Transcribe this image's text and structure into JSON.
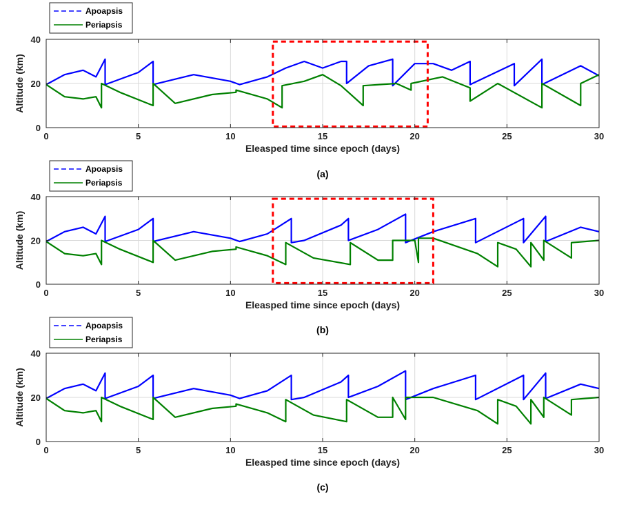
{
  "colors": {
    "apoapsis": "#0000ff",
    "periapsis": "#008000",
    "highlight": "#ff0000",
    "grid": "#d9d9d9",
    "axis": "#262626"
  },
  "chart_data": [
    {
      "type": "line",
      "panel": "(a)",
      "xlabel": "Eleasped time since epoch (days)",
      "ylabel": "Altitude (km)",
      "xlim": [
        0,
        30
      ],
      "ylim": [
        0,
        40
      ],
      "xticks": [
        "0",
        "5",
        "10",
        "15",
        "20",
        "25",
        "30"
      ],
      "yticks": [
        "0",
        "20",
        "40"
      ],
      "grid": true,
      "legend": {
        "position": "top-left-outside",
        "entries": [
          "Apoapsis",
          "Periapsis"
        ]
      },
      "highlight_box": {
        "x": [
          12.3,
          20.7
        ],
        "y": [
          0.5,
          39
        ]
      },
      "series": [
        {
          "name": "Apoapsis",
          "style": "dashed",
          "x": [
            0,
            1,
            2,
            2.7,
            3.2,
            3.2,
            5,
            5.8,
            5.8,
            8,
            10,
            10.5,
            12,
            13,
            14,
            15,
            16,
            16.3,
            16.3,
            17.5,
            18.8,
            18.8,
            20,
            21,
            22,
            23,
            23,
            25.4,
            25.4,
            26.9,
            26.9,
            29,
            30
          ],
          "y": [
            19.5,
            24,
            26,
            23,
            31,
            19.5,
            25,
            30,
            19.5,
            24,
            21,
            19.5,
            23,
            27,
            30,
            27,
            30,
            30,
            20,
            28,
            31,
            19,
            29,
            29,
            26,
            30,
            19.5,
            29,
            19,
            31,
            19.5,
            28,
            23.5
          ]
        },
        {
          "name": "Periapsis",
          "style": "solid",
          "x": [
            0,
            1,
            2,
            2.7,
            3.0,
            3.0,
            4,
            5.8,
            5.8,
            7,
            9,
            10.3,
            10.3,
            12,
            12.8,
            12.8,
            14,
            15,
            16,
            17.2,
            17.2,
            19,
            19.8,
            19.8,
            21.5,
            23,
            23,
            24.5,
            24.5,
            26.9,
            26.9,
            29,
            29,
            30
          ],
          "y": [
            19.5,
            14,
            13,
            14,
            9,
            20,
            16,
            10,
            20,
            11,
            15,
            16,
            17,
            13,
            9,
            19,
            21,
            24,
            19,
            10,
            19,
            20,
            17,
            20,
            23,
            18,
            12,
            20,
            20,
            9,
            20,
            10,
            20,
            24
          ]
        }
      ]
    },
    {
      "type": "line",
      "panel": "(b)",
      "xlabel": "Eleasped time since epoch (days)",
      "ylabel": "Altitude (km)",
      "xlim": [
        0,
        30
      ],
      "ylim": [
        0,
        40
      ],
      "xticks": [
        "0",
        "5",
        "10",
        "15",
        "20",
        "25",
        "30"
      ],
      "yticks": [
        "0",
        "20",
        "40"
      ],
      "grid": true,
      "legend": {
        "position": "top-left-outside",
        "entries": [
          "Apoapsis",
          "Periapsis"
        ]
      },
      "highlight_box": {
        "x": [
          12.3,
          21.0
        ],
        "y": [
          0.5,
          39
        ]
      },
      "series": [
        {
          "name": "Apoapsis",
          "style": "dashed",
          "x": [
            0,
            1,
            2,
            2.7,
            3.2,
            3.2,
            5,
            5.8,
            5.8,
            8,
            10,
            10.5,
            12,
            13.3,
            13.3,
            14,
            16,
            16.4,
            16.4,
            18,
            19.5,
            19.5,
            21,
            23.3,
            23.3,
            25.9,
            25.9,
            27.1,
            27.1,
            29,
            30
          ],
          "y": [
            19.5,
            24,
            26,
            23,
            31,
            19.5,
            25,
            30,
            19.5,
            24,
            21,
            19.5,
            23,
            30,
            19,
            20,
            27,
            30,
            20,
            25,
            32,
            19,
            24,
            30,
            19,
            30,
            19,
            31,
            19.5,
            26,
            24
          ]
        },
        {
          "name": "Periapsis",
          "style": "solid",
          "x": [
            0,
            1,
            2,
            2.7,
            3.0,
            3.0,
            4,
            5.8,
            5.8,
            7,
            9,
            10.3,
            10.3,
            12,
            13,
            13,
            14.5,
            16.5,
            16.5,
            18,
            18.8,
            18.8,
            20,
            20.2,
            20.2,
            21,
            23.4,
            23.4,
            24.5,
            24.5,
            25.5,
            26.3,
            26.3,
            27,
            27,
            28.5,
            28.5,
            30
          ],
          "y": [
            19.5,
            14,
            13,
            14,
            9,
            20,
            16,
            10,
            20,
            11,
            15,
            16,
            17,
            13,
            9,
            19,
            12,
            9,
            19,
            11,
            11,
            20,
            20,
            10,
            21,
            21,
            14,
            14,
            8,
            19,
            16,
            8,
            19,
            11,
            20,
            12,
            19,
            20
          ]
        }
      ]
    },
    {
      "type": "line",
      "panel": "(c)",
      "xlabel": "Eleasped time since epoch (days)",
      "ylabel": "Altitude (km)",
      "xlim": [
        0,
        30
      ],
      "ylim": [
        0,
        40
      ],
      "xticks": [
        "0",
        "5",
        "10",
        "15",
        "20",
        "25",
        "30"
      ],
      "yticks": [
        "0",
        "20",
        "40"
      ],
      "grid": true,
      "legend": {
        "position": "top-left-outside",
        "entries": [
          "Apoapsis",
          "Periapsis"
        ]
      },
      "series": [
        {
          "name": "Apoapsis",
          "style": "dashed",
          "x": [
            0,
            1,
            2,
            2.7,
            3.2,
            3.2,
            5,
            5.8,
            5.8,
            8,
            10,
            10.5,
            12,
            13.3,
            13.3,
            14,
            16,
            16.4,
            16.4,
            18,
            19.5,
            19.5,
            21,
            23.3,
            23.3,
            25.9,
            25.9,
            27.1,
            27.1,
            29,
            30
          ],
          "y": [
            19.5,
            24,
            26,
            23,
            31,
            19.5,
            25,
            30,
            19.5,
            24,
            21,
            19.5,
            23,
            30,
            19,
            20,
            27,
            30,
            20,
            25,
            32,
            19,
            24,
            30,
            19,
            30,
            19,
            31,
            19.5,
            26,
            24
          ]
        },
        {
          "name": "Periapsis",
          "style": "solid",
          "x": [
            0,
            1,
            2,
            2.7,
            3.0,
            3.0,
            4,
            5.8,
            5.8,
            7,
            9,
            10.3,
            10.3,
            12,
            13,
            13,
            14.5,
            16.3,
            16.3,
            18,
            18.8,
            18.8,
            19.5,
            19.5,
            21,
            23.4,
            24.5,
            24.5,
            25.5,
            26.3,
            26.3,
            27,
            27,
            28.5,
            28.5,
            30
          ],
          "y": [
            19.5,
            14,
            13,
            14,
            9,
            20,
            16,
            10,
            20,
            11,
            15,
            16,
            17,
            13,
            9,
            19,
            12,
            9,
            19,
            11,
            11,
            20,
            10,
            20,
            20,
            14,
            8,
            19,
            16,
            8,
            19,
            11,
            20,
            12,
            19,
            20
          ]
        }
      ]
    }
  ]
}
